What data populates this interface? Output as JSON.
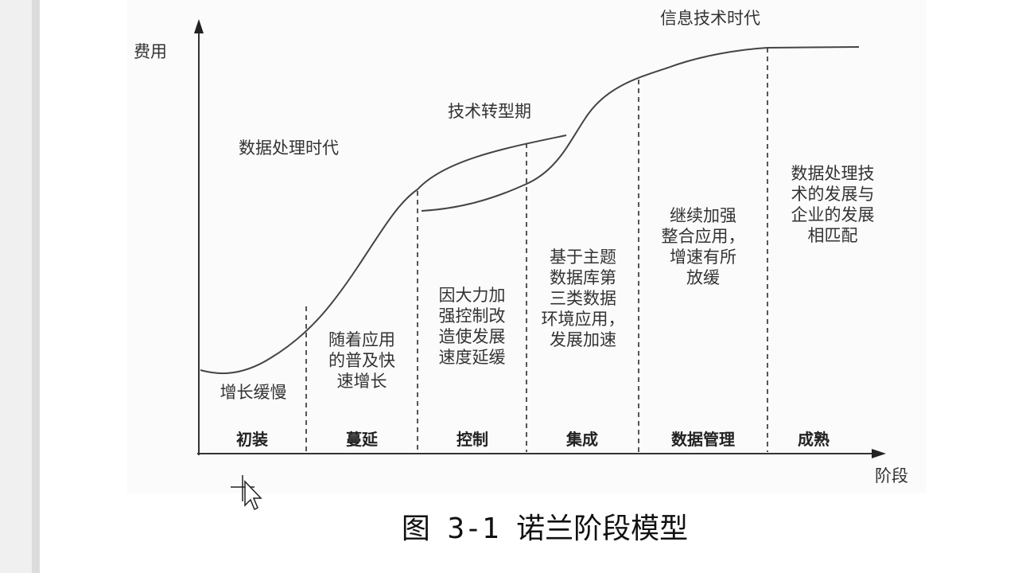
{
  "axes": {
    "y_label": "费用",
    "x_label": "阶段"
  },
  "eras": {
    "data_processing": "数据处理时代",
    "transition": "技术转型期",
    "information": "信息技术时代"
  },
  "stages": [
    {
      "name": "初装",
      "desc": "增长缓慢"
    },
    {
      "name": "蔓延",
      "desc": "随着应用\n的普及快\n速增长"
    },
    {
      "name": "控制",
      "desc": "因大力加\n强控制改\n造使发展\n速度延缓"
    },
    {
      "name": "集成",
      "desc": "基于主题\n数据库第\n三类数据\n环境应用，\n发展加速"
    },
    {
      "name": "数据管理",
      "desc": "继续加强\n整合应用，\n增速有所\n放缓"
    },
    {
      "name": "成熟",
      "desc": "数据处理技\n术的发展与\n企业的发展\n相匹配"
    }
  ],
  "caption": "图 3-1 诺兰阶段模型",
  "cursor_icon": "move-cursor-icon"
}
